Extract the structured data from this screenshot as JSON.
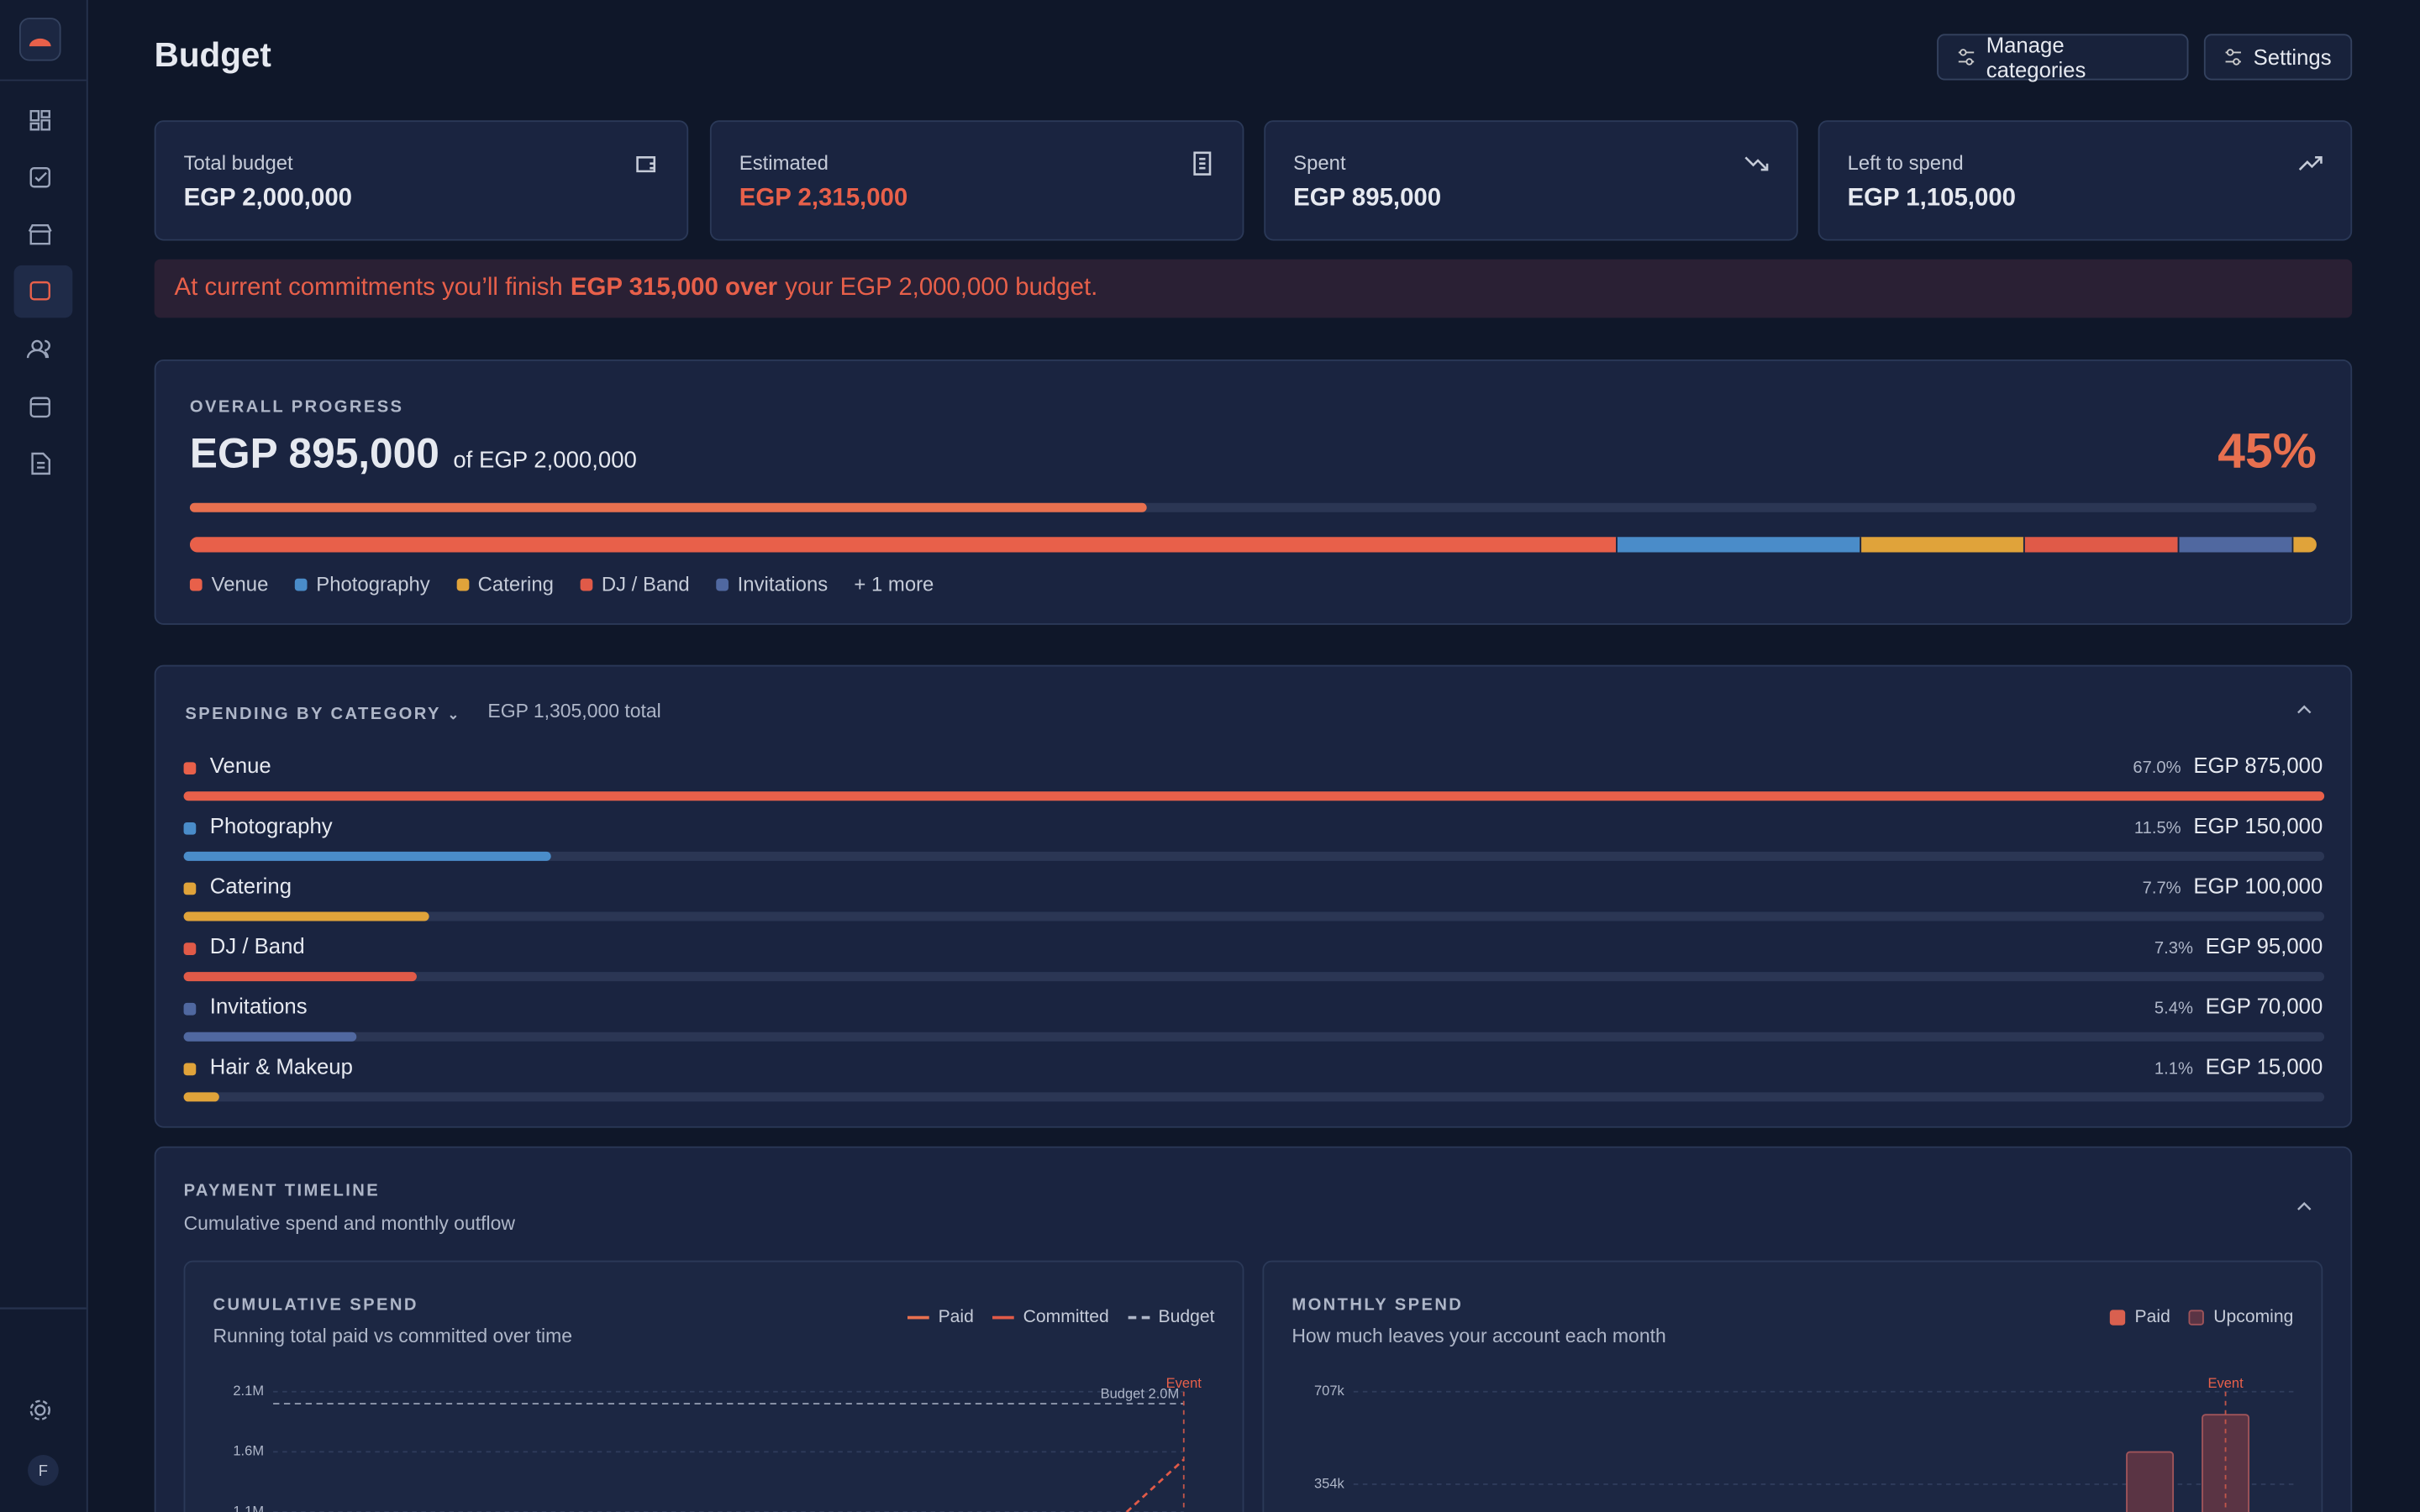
{
  "header": {
    "title": "Budget",
    "buttons": [
      "Manage categories",
      "Settings"
    ]
  },
  "stats": [
    {
      "label": "Total budget",
      "value": "EGP 2,000,000"
    },
    {
      "label": "Estimated",
      "value": "EGP 2,315,000"
    },
    {
      "label": "Spent",
      "value": "EGP 895,000"
    },
    {
      "label": "Left to spend",
      "value": "EGP 1,105,000"
    }
  ],
  "alert": {
    "prefix": "At current commitments you’ll finish",
    "strong": "EGP 315,000 over",
    "suffix": "your EGP 2,000,000 budget."
  },
  "progress": {
    "heading": "OVERALL PROGRESS",
    "spent": "EGP 895,000",
    "of": "of EGP 2,000,000",
    "percent": {
      "value": 45,
      "label": "45%"
    },
    "more": "+ 1 more"
  },
  "categories": {
    "heading": "SPENDING BY CATEGORY",
    "total": "EGP 1,305,000 total",
    "items": [
      {
        "name": "Venue",
        "color": "#e8604a",
        "share": {
          "value": 67.0,
          "label": "67.0%"
        },
        "amount": {
          "value": 875000,
          "label": "EGP 875,000"
        }
      },
      {
        "name": "Photography",
        "color": "#4a8cc9",
        "share": {
          "value": 11.5,
          "label": "11.5%"
        },
        "amount": {
          "value": 150000,
          "label": "EGP 150,000"
        }
      },
      {
        "name": "Catering",
        "color": "#e0a33a",
        "share": {
          "value": 7.7,
          "label": "7.7%"
        },
        "amount": {
          "value": 100000,
          "label": "EGP 100,000"
        }
      },
      {
        "name": "DJ / Band",
        "color": "#e05a48",
        "share": {
          "value": 7.3,
          "label": "7.3%"
        },
        "amount": {
          "value": 95000,
          "label": "EGP 95,000"
        }
      },
      {
        "name": "Invitations",
        "color": "#5068a0",
        "share": {
          "value": 5.4,
          "label": "5.4%"
        },
        "amount": {
          "value": 70000,
          "label": "EGP 70,000"
        }
      },
      {
        "name": "Hair & Makeup",
        "color": "#e0a33a",
        "share": {
          "value": 1.1,
          "label": "1.1%"
        },
        "amount": {
          "value": 15000,
          "label": "EGP 15,000"
        }
      }
    ]
  },
  "timeline": {
    "heading": "PAYMENT TIMELINE",
    "subtitle": "Cumulative spend and monthly outflow",
    "cumulative": {
      "title": "CUMULATIVE SPEND",
      "subtitle": "Running total paid vs committed over time",
      "legend": [
        "Paid",
        "Committed",
        "Budget"
      ],
      "yticks": [
        {
          "value": 2100000,
          "label": "2.1M"
        },
        {
          "value": 1600000,
          "label": "1.6M"
        },
        {
          "value": 1100000,
          "label": "1.1M"
        }
      ],
      "budget": {
        "value": 2000000,
        "label": "Budget 2.0M"
      },
      "event": "Event"
    },
    "monthly": {
      "title": "MONTHLY SPEND",
      "subtitle": "How much leaves your account each month",
      "legend": [
        "Paid",
        "Upcoming"
      ],
      "yticks": [
        {
          "value": 707000,
          "label": "707k"
        },
        {
          "value": 354000,
          "label": "354k"
        }
      ],
      "values": [
        477000,
        619000
      ],
      "event": "Event"
    }
  },
  "sidebar": {
    "avatar": "F"
  }
}
